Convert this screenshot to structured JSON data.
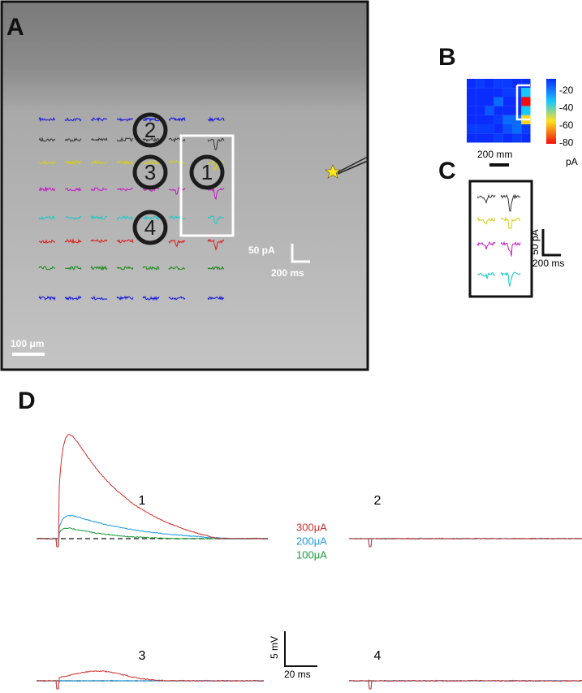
{
  "panel_a": {
    "label": "A",
    "sites": [
      "1",
      "2",
      "3",
      "4"
    ],
    "scale_current": "50 pA",
    "scale_time": "200 ms",
    "scale_length": "100 μm"
  },
  "panel_b": {
    "label": "B",
    "colorbar_ticks": [
      "-20",
      "-40",
      "-60",
      "-80"
    ],
    "colorbar_unit": "pA",
    "scale_length": "200 mm"
  },
  "panel_c": {
    "label": "C",
    "scale_current": "50 pA",
    "scale_time": "200 ms"
  },
  "panel_d": {
    "label": "D",
    "traces": [
      "1",
      "2",
      "3",
      "4"
    ],
    "legend": [
      {
        "name": "300μA",
        "color": "#d0312d"
      },
      {
        "name": "200μA",
        "color": "#1e9be0"
      },
      {
        "name": "100μA",
        "color": "#1a9a3a"
      }
    ],
    "scale_voltage": "5 mV",
    "scale_time": "20 ms"
  }
}
